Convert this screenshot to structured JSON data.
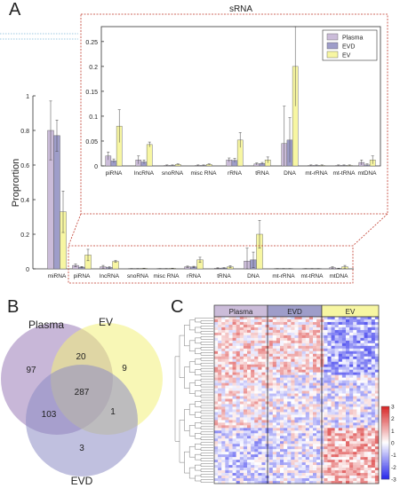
{
  "panels": {
    "a": "A",
    "b": "B",
    "c": "C"
  },
  "colors": {
    "plasma": "#cbbcd9",
    "evd": "#9e9dc9",
    "ev": "#f7f6a2",
    "frame": "#c0392b",
    "venn_plasma": "#9b7bb8",
    "venn_ev": "#f3f07a",
    "venn_evd": "#8c8cc4"
  },
  "chart_data": [
    {
      "type": "bar",
      "id": "main",
      "categories": [
        "miRNA",
        "piRNA",
        "lncRNA",
        "snoRNA",
        "misc RNA",
        "rRNA",
        "tRNA",
        "DNA",
        "mt-rRNA",
        "mt-tRNA",
        "mtDNA"
      ],
      "series": [
        {
          "name": "Plasma",
          "values": [
            0.8,
            0.02,
            0.012,
            0.001,
            0.001,
            0.012,
            0.004,
            0.045,
            0.001,
            0.001,
            0.007
          ],
          "errors": [
            0.17,
            0.008,
            0.008,
            0.001,
            0.001,
            0.004,
            0.002,
            0.075,
            0.001,
            0.001,
            0.005
          ]
        },
        {
          "name": "EVD",
          "values": [
            0.77,
            0.01,
            0.008,
            0.001,
            0.001,
            0.011,
            0.005,
            0.052,
            0.001,
            0.001,
            0.002
          ],
          "errors": [
            0.09,
            0.004,
            0.004,
            0.001,
            0.001,
            0.004,
            0.002,
            0.045,
            0.001,
            0.001,
            0.002
          ]
        },
        {
          "name": "EV",
          "values": [
            0.33,
            0.08,
            0.043,
            0.003,
            0.003,
            0.052,
            0.012,
            0.2,
            0.001,
            0.001,
            0.012
          ],
          "errors": [
            0.12,
            0.033,
            0.005,
            0.001,
            0.001,
            0.015,
            0.006,
            0.08,
            0.001,
            0.001,
            0.008
          ]
        }
      ],
      "ylabel": "Proprortion",
      "ylim": [
        0,
        1
      ],
      "yticks": [
        "0",
        "0.2",
        "0.4",
        "0.6",
        "0.8",
        "1"
      ]
    },
    {
      "type": "bar",
      "id": "inset",
      "title": "sRNA",
      "categories": [
        "piRNA",
        "lncRNA",
        "snoRNA",
        "misc RNA",
        "rRNA",
        "tRNA",
        "DNA",
        "mt-rRNA",
        "mt-tRNA",
        "mtDNA"
      ],
      "ylim": [
        0,
        0.28
      ],
      "yticks": [
        "0",
        "0.05",
        "0.1",
        "0.15",
        "0.2",
        "0.25"
      ],
      "legend": [
        "Plasma",
        "EVD",
        "EV"
      ],
      "legend_position": "top-right"
    },
    {
      "type": "venn",
      "sets": [
        "Plasma",
        "EV",
        "EVD"
      ],
      "regions": {
        "plasma_only": 97,
        "plasma_ev": 20,
        "ev_only": 9,
        "all": 287,
        "plasma_evd": 103,
        "ev_evd": 1,
        "evd_only": 3
      }
    },
    {
      "type": "heatmap",
      "groups": [
        "Plasma",
        "EVD",
        "EV"
      ],
      "colorbar_ticks": [
        "3",
        "2",
        "1",
        "0",
        "-1",
        "-2",
        "-3"
      ],
      "colorbar_range": [
        -3,
        3
      ]
    }
  ]
}
